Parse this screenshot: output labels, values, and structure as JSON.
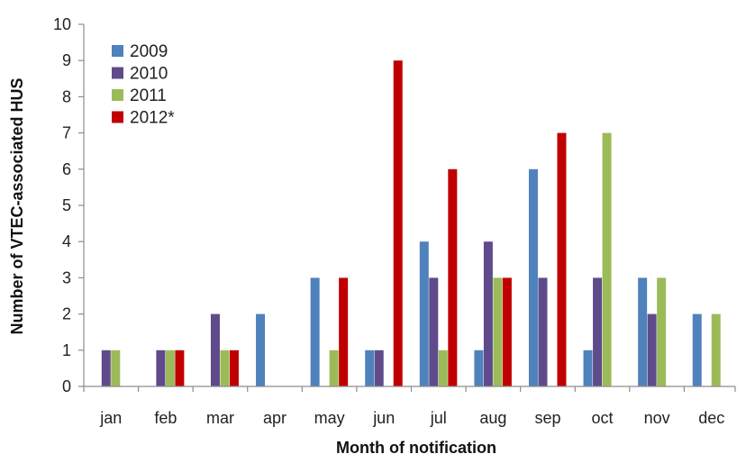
{
  "chart_data": {
    "type": "bar",
    "title": "",
    "xlabel": "Month of notification",
    "ylabel": "Number of VTEC-associated HUS",
    "categories": [
      "jan",
      "feb",
      "mar",
      "apr",
      "may",
      "jun",
      "jul",
      "aug",
      "sep",
      "oct",
      "nov",
      "dec"
    ],
    "ylim": [
      0,
      10
    ],
    "yticks": [
      0,
      1,
      2,
      3,
      4,
      5,
      6,
      7,
      8,
      9,
      10
    ],
    "grid": false,
    "legend_position": "top-left",
    "series": [
      {
        "name": "2009",
        "color": "#4f81bd",
        "values": [
          0,
          0,
          0,
          2,
          3,
          1,
          4,
          1,
          6,
          1,
          3,
          2
        ]
      },
      {
        "name": "2010",
        "color": "#5f4b8b",
        "values": [
          1,
          1,
          2,
          0,
          0,
          1,
          3,
          4,
          3,
          3,
          2,
          0
        ]
      },
      {
        "name": "2011",
        "color": "#9bbb59",
        "values": [
          1,
          1,
          1,
          0,
          1,
          0,
          1,
          3,
          0,
          7,
          3,
          2
        ]
      },
      {
        "name": "2012*",
        "color": "#c00000",
        "values": [
          0,
          1,
          1,
          0,
          3,
          9,
          6,
          3,
          7,
          0,
          0,
          0
        ]
      }
    ]
  }
}
